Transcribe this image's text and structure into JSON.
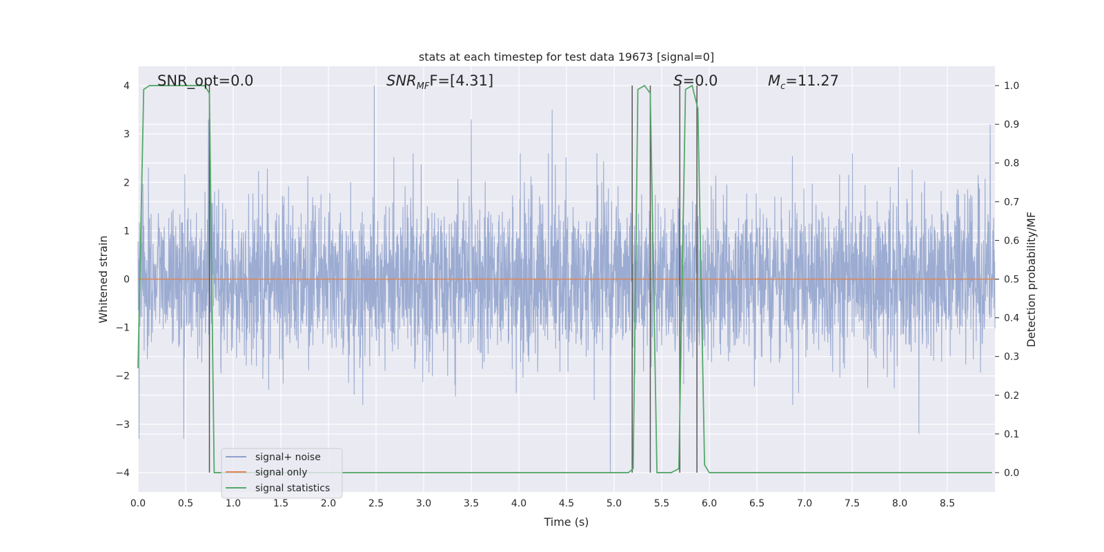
{
  "chart_data": {
    "type": "line",
    "title": "stats at each timestep for test data 19673 [signal=0]",
    "xlabel": "Time (s)",
    "ylabel": "Whitened strain",
    "y2label": "Detection probability/MF",
    "xlim": [
      0.0,
      9.0
    ],
    "ylim": [
      -4.4,
      4.4
    ],
    "y2lim": [
      -0.05,
      1.05
    ],
    "x_ticks": [
      "0.0",
      "0.5",
      "1.0",
      "1.5",
      "2.0",
      "2.5",
      "3.0",
      "3.5",
      "4.0",
      "4.5",
      "5.0",
      "5.5",
      "6.0",
      "6.5",
      "7.0",
      "7.5",
      "8.0",
      "8.5"
    ],
    "y_ticks": [
      "−4",
      "−3",
      "−2",
      "−1",
      "0",
      "1",
      "2",
      "3",
      "4"
    ],
    "y2_ticks": [
      "0.0",
      "0.1",
      "0.2",
      "0.3",
      "0.4",
      "0.5",
      "0.6",
      "0.7",
      "0.8",
      "0.9",
      "1.0"
    ],
    "grid": true,
    "legend_position": "lower-left",
    "annotations": {
      "snr_opt": "SNR_opt=0.0",
      "snr_mf_main": "SNR",
      "snr_mf_sub": "MF",
      "snr_mf_rest": "F=[4.31]",
      "s_main": "S",
      "s_rest": "=0.0",
      "mc_main": "M",
      "mc_sub": "c",
      "mc_rest": "=11.27"
    },
    "series": [
      {
        "name": "signal+ noise",
        "color": "#8da0cb",
        "axis": "left",
        "approx_peaks": [
          {
            "x": 0.01,
            "y": -3.3
          },
          {
            "x": 0.48,
            "y": -3.3
          },
          {
            "x": 0.74,
            "y": 3.3
          },
          {
            "x": 2.48,
            "y": 4.0
          },
          {
            "x": 3.5,
            "y": 3.3
          },
          {
            "x": 4.35,
            "y": 3.5
          },
          {
            "x": 4.96,
            "y": -4.0
          },
          {
            "x": 8.2,
            "y": -3.2
          },
          {
            "x": 8.95,
            "y": 3.2
          }
        ],
        "typical_band": [
          -1.6,
          1.6
        ]
      },
      {
        "name": "signal only",
        "color": "#dd8452",
        "axis": "left",
        "x": [
          0.0,
          9.0
        ],
        "y": [
          0.0,
          0.0
        ]
      },
      {
        "name": "signal statistics",
        "color": "#55a868",
        "axis": "right",
        "x": [
          0.0,
          0.06,
          0.12,
          0.7,
          0.75,
          0.8,
          5.15,
          5.2,
          5.25,
          5.32,
          5.38,
          5.45,
          5.6,
          5.68,
          5.75,
          5.82,
          5.88,
          5.95,
          6.0,
          8.97
        ],
        "y": [
          0.27,
          0.99,
          1.0,
          1.0,
          0.98,
          0.0,
          0.0,
          0.01,
          0.99,
          1.0,
          0.98,
          0.0,
          0.0,
          0.01,
          0.99,
          1.0,
          0.94,
          0.02,
          0.0,
          0.0
        ]
      }
    ],
    "vertical_lines": {
      "color": "#555555",
      "x": [
        0.75,
        5.19,
        5.38,
        5.69,
        5.87
      ]
    }
  }
}
